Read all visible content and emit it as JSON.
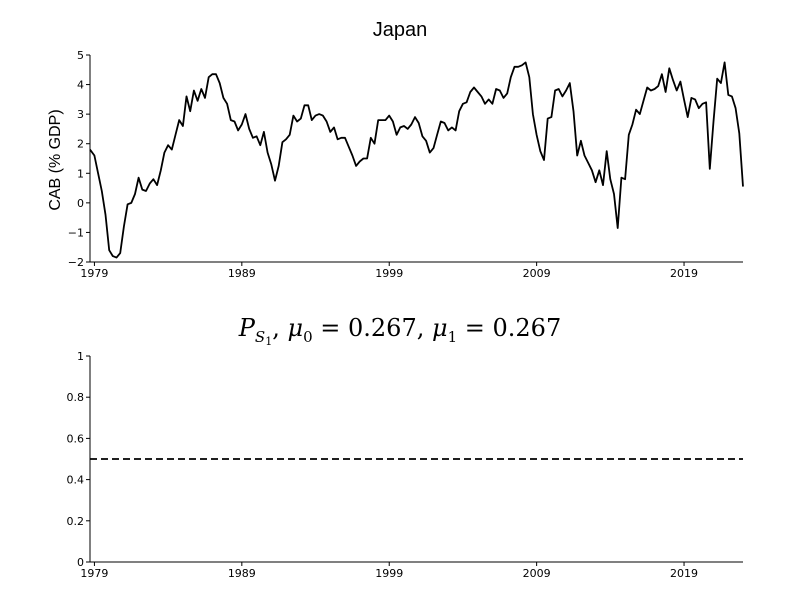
{
  "chart_data": [
    {
      "type": "line",
      "title": "Japan",
      "ylabel": "CAB (% GDP)",
      "xlabel": "",
      "xlim": [
        1978.7,
        2023.0
      ],
      "ylim": [
        -2,
        5
      ],
      "x_ticks": [
        1979,
        1989,
        1999,
        2009,
        2019
      ],
      "x_tick_labels": [
        "1979",
        "1989",
        "1999",
        "2009",
        "2019"
      ],
      "y_ticks": [
        -2,
        -1,
        0,
        1,
        2,
        3,
        4,
        5
      ],
      "y_tick_labels": [
        "−2",
        "−1",
        "0",
        "1",
        "2",
        "3",
        "4",
        "5"
      ],
      "grid": false,
      "series": [
        {
          "x": [
            1978.7,
            1979.0,
            1979.25,
            1979.5,
            1979.75,
            1980.0,
            1980.25,
            1980.5,
            1980.75,
            1981.0,
            1981.25,
            1981.5,
            1981.75,
            1982.0,
            1982.25,
            1982.5,
            1982.75,
            1983.0,
            1983.25,
            1983.5,
            1983.75,
            1984.0,
            1984.25,
            1984.5,
            1984.75,
            1985.0,
            1985.25,
            1985.5,
            1985.75,
            1986.0,
            1986.25,
            1986.5,
            1986.75,
            1987.0,
            1987.25,
            1987.5,
            1987.75,
            1988.0,
            1988.25,
            1988.5,
            1988.75,
            1989.0,
            1989.25,
            1989.5,
            1989.75,
            1990.0,
            1990.25,
            1990.5,
            1990.75,
            1991.0,
            1991.25,
            1991.5,
            1991.75,
            1992.0,
            1992.25,
            1992.5,
            1992.75,
            1993.0,
            1993.25,
            1993.5,
            1993.75,
            1994.0,
            1994.25,
            1994.5,
            1994.75,
            1995.0,
            1995.25,
            1995.5,
            1995.75,
            1996.0,
            1996.25,
            1996.5,
            1996.75,
            1997.0,
            1997.25,
            1997.5,
            1997.75,
            1998.0,
            1998.25,
            1998.5,
            1998.75,
            1999.0,
            1999.25,
            1999.5,
            1999.75,
            2000.0,
            2000.25,
            2000.5,
            2000.75,
            2001.0,
            2001.25,
            2001.5,
            2001.75,
            2002.0,
            2002.25,
            2002.5,
            2002.75,
            2003.0,
            2003.25,
            2003.5,
            2003.75,
            2004.0,
            2004.25,
            2004.5,
            2004.75,
            2005.0,
            2005.25,
            2005.5,
            2005.75,
            2006.0,
            2006.25,
            2006.5,
            2006.75,
            2007.0,
            2007.25,
            2007.5,
            2007.75,
            2008.0,
            2008.25,
            2008.5,
            2008.75,
            2009.0,
            2009.25,
            2009.5,
            2009.75,
            2010.0,
            2010.25,
            2010.5,
            2010.75,
            2011.0,
            2011.25,
            2011.5,
            2011.75,
            2012.0,
            2012.25,
            2012.5,
            2012.75,
            2013.0,
            2013.25,
            2013.5,
            2013.75,
            2014.0,
            2014.25,
            2014.5,
            2014.75,
            2015.0,
            2015.25,
            2015.5,
            2015.75,
            2016.0,
            2016.25,
            2016.5,
            2016.75,
            2017.0,
            2017.25,
            2017.5,
            2017.75,
            2018.0,
            2018.25,
            2018.5,
            2018.75,
            2019.0,
            2019.25,
            2019.5,
            2019.75,
            2020.0,
            2020.25,
            2020.5,
            2020.75,
            2021.0,
            2021.25,
            2021.5,
            2021.75,
            2022.0,
            2022.25,
            2022.5,
            2022.75,
            2023.0
          ],
          "y": [
            1.8,
            1.6,
            1.0,
            0.4,
            -0.4,
            -1.6,
            -1.8,
            -1.85,
            -1.7,
            -0.8,
            -0.05,
            0.0,
            0.3,
            0.85,
            0.45,
            0.4,
            0.65,
            0.8,
            0.6,
            1.1,
            1.7,
            1.95,
            1.8,
            2.3,
            2.8,
            2.6,
            3.6,
            3.1,
            3.8,
            3.45,
            3.85,
            3.55,
            4.25,
            4.35,
            4.35,
            4.05,
            3.55,
            3.35,
            2.8,
            2.75,
            2.45,
            2.65,
            3.0,
            2.5,
            2.2,
            2.25,
            1.95,
            2.4,
            1.7,
            1.3,
            0.75,
            1.25,
            2.05,
            2.15,
            2.3,
            2.95,
            2.75,
            2.85,
            3.3,
            3.3,
            2.8,
            2.95,
            3.0,
            2.95,
            2.75,
            2.4,
            2.55,
            2.15,
            2.2,
            2.2,
            1.9,
            1.6,
            1.25,
            1.4,
            1.5,
            1.5,
            2.2,
            2.0,
            2.8,
            2.8,
            2.8,
            2.95,
            2.75,
            2.3,
            2.55,
            2.6,
            2.5,
            2.65,
            2.9,
            2.7,
            2.25,
            2.1,
            1.7,
            1.85,
            2.3,
            2.75,
            2.7,
            2.45,
            2.55,
            2.45,
            3.1,
            3.35,
            3.4,
            3.75,
            3.9,
            3.75,
            3.6,
            3.35,
            3.5,
            3.35,
            3.85,
            3.8,
            3.55,
            3.7,
            4.25,
            4.6,
            4.6,
            4.65,
            4.75,
            4.25,
            3.0,
            2.3,
            1.75,
            1.45,
            2.85,
            2.9,
            3.8,
            3.85,
            3.6,
            3.8,
            4.05,
            3.1,
            1.6,
            2.1,
            1.6,
            1.35,
            1.1,
            0.7,
            1.1,
            0.6,
            1.75,
            0.8,
            0.3,
            -0.85,
            0.85,
            0.8,
            2.3,
            2.65,
            3.15,
            3.0,
            3.45,
            3.9,
            3.8,
            3.85,
            3.95,
            4.35,
            3.75,
            4.55,
            4.15,
            3.8,
            4.1,
            3.5,
            2.9,
            3.55,
            3.5,
            3.2,
            3.35,
            3.4,
            1.15,
            2.75,
            4.2,
            4.05,
            4.75,
            3.65,
            3.6,
            3.2,
            2.35,
            0.55
          ]
        }
      ]
    },
    {
      "type": "line",
      "title": "P_{S_1}, μ_0 = 0.267, μ_1 = 0.267",
      "title_parts": {
        "P": "P",
        "S": "S",
        "one": "1",
        "mu": "μ",
        "zero": "0",
        "val0": "0.267",
        "val1": "0.267"
      },
      "xlabel": "",
      "ylabel": "",
      "xlim": [
        1978.7,
        2023.0
      ],
      "ylim": [
        0,
        1
      ],
      "x_ticks": [
        1979,
        1989,
        1999,
        2009,
        2019
      ],
      "x_tick_labels": [
        "1979",
        "1989",
        "1999",
        "2009",
        "2019"
      ],
      "y_ticks": [
        0,
        0.2,
        0.4,
        0.6,
        0.8,
        1
      ],
      "y_tick_labels": [
        "0",
        "0.2",
        "0.4",
        "0.6",
        "0.8",
        "1"
      ],
      "grid": false,
      "series": [
        {
          "style": "dashed",
          "x": [
            1978.7,
            2023.0
          ],
          "y": [
            0.5,
            0.5
          ]
        }
      ]
    }
  ]
}
